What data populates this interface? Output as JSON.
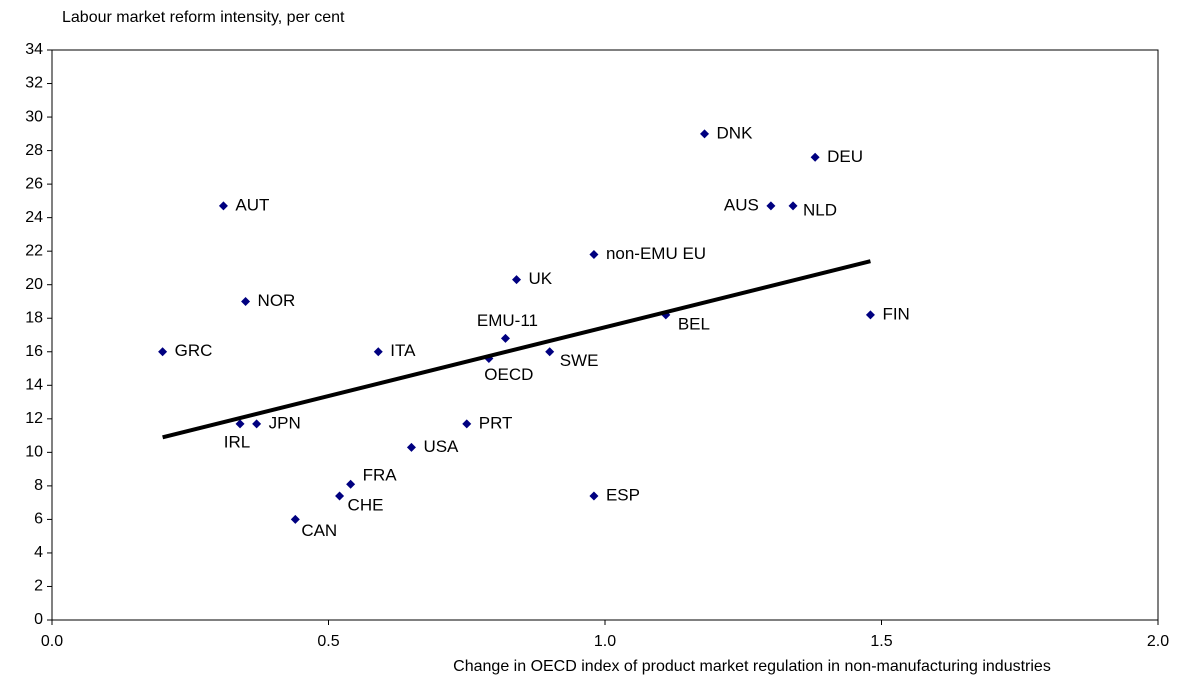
{
  "chart_data": {
    "type": "scatter",
    "ylabel": "Labour market reform intensity, per cent",
    "xlabel": "Change in OECD index of product market regulation in non-manufacturing industries",
    "color": "#000080",
    "series": [
      {
        "labels": [
          "DNK",
          "DEU",
          "AUS",
          "NLD",
          "AUT",
          "non-EMU EU",
          "UK",
          "NOR",
          "BEL",
          "FIN",
          "EMU-11",
          "GRC",
          "ITA",
          "SWE",
          "OECD",
          "IRL",
          "JPN",
          "PRT",
          "USA",
          "FRA",
          "CHE",
          "ESP",
          "CAN"
        ],
        "x": [
          1.18,
          1.38,
          1.3,
          1.34,
          0.31,
          0.98,
          0.84,
          0.35,
          1.11,
          1.48,
          0.82,
          0.2,
          0.59,
          0.9,
          0.79,
          0.34,
          0.37,
          0.75,
          0.65,
          0.54,
          0.52,
          0.98,
          0.44
        ],
        "values": [
          29.0,
          27.6,
          24.7,
          24.7,
          24.7,
          21.8,
          20.3,
          19.0,
          18.2,
          18.2,
          16.8,
          16.0,
          16.0,
          16.0,
          15.6,
          11.7,
          11.7,
          11.7,
          10.3,
          8.1,
          7.4,
          7.4,
          6.0
        ]
      }
    ],
    "trendline": {
      "x": [
        0.2,
        1.48
      ],
      "values": [
        10.9,
        21.4
      ],
      "color": "#000000"
    },
    "xlim": [
      0,
      2
    ],
    "xticks": [
      {
        "value": 0,
        "label": "0.0"
      },
      {
        "value": 0.5,
        "label": "0.5"
      },
      {
        "value": 1,
        "label": "1.0"
      },
      {
        "value": 1.5,
        "label": "1.5"
      },
      {
        "value": 2,
        "label": "2.0"
      }
    ],
    "ylim": [
      0,
      34
    ],
    "yticks": [
      0,
      2,
      4,
      6,
      8,
      10,
      12,
      14,
      16,
      18,
      20,
      22,
      24,
      26,
      28,
      30,
      32,
      34
    ],
    "grid": false
  }
}
